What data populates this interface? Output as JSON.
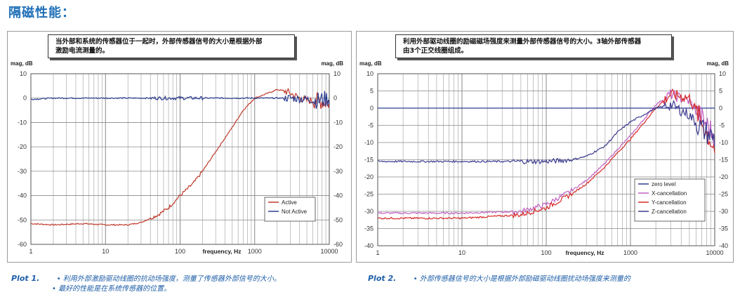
{
  "page_title": "隔磁性能：",
  "chart_data": [
    {
      "type": "line",
      "note": "当外部和系统的传感器位于一起时，外部传感器信号的大小是根据外部\n激励电流测量的。",
      "ylabel_left": "mag, dB",
      "ylabel_right": "mag, dB",
      "xlabel": "frequency, Hz",
      "x_scale": "log",
      "xlim": [
        1,
        10000
      ],
      "ylim": [
        -60,
        10
      ],
      "x_ticks": [
        "1",
        "10",
        "100",
        "1000",
        "10000"
      ],
      "y_ticks": [
        "10",
        "0",
        "-10",
        "-20",
        "-30",
        "-40",
        "-50",
        "-60"
      ],
      "legend_position": "bottom-right",
      "series": [
        {
          "name": "Active",
          "color": "#c0392b",
          "x": [
            1,
            2,
            5,
            10,
            20,
            30,
            50,
            70,
            100,
            150,
            200,
            300,
            500,
            700,
            1000,
            1500,
            2000,
            2500,
            3000,
            4000,
            5000,
            7000,
            10000
          ],
          "y": [
            -51.5,
            -52,
            -51.5,
            -52,
            -52,
            -51,
            -48,
            -45,
            -40,
            -35,
            -30,
            -22,
            -12,
            -5,
            0,
            2,
            3.5,
            3,
            2,
            0,
            -1,
            -1,
            -2
          ]
        },
        {
          "name": "Not Active",
          "color": "#2c3e91",
          "x": [
            1,
            2,
            10,
            100,
            1000,
            2000,
            3000,
            5000,
            7000,
            10000
          ],
          "y": [
            -0.5,
            0,
            0,
            0,
            0,
            0,
            0,
            -0.5,
            -1,
            0
          ]
        }
      ]
    },
    {
      "type": "line",
      "note": "利用外部驱动线圈的励磁磁场强度来测量外部传感器信号的大小。3轴外部传感器\n由3个正交线圈组成。",
      "ylabel_left": "mag, dB",
      "ylabel_right": "mag, dB",
      "xlabel": "frequency, Hz",
      "x_scale": "log",
      "xlim": [
        1,
        10000
      ],
      "ylim": [
        -40,
        10
      ],
      "x_ticks": [
        "1",
        "10",
        "100",
        "1000",
        "10000"
      ],
      "y_ticks": [
        "10",
        "5",
        "0",
        "-5",
        "-10",
        "-15",
        "-20",
        "-25",
        "-30",
        "-35",
        "-40"
      ],
      "legend_position": "bottom-right",
      "series": [
        {
          "name": "zero level",
          "color": "#2c3e91",
          "x": [
            1,
            10000
          ],
          "y": [
            0,
            0
          ]
        },
        {
          "name": "X-cancellation",
          "color": "#c060c0",
          "x": [
            1,
            10,
            50,
            100,
            200,
            300,
            500,
            700,
            1000,
            2000,
            3000,
            5000,
            7000,
            10000
          ],
          "y": [
            -30.5,
            -30.5,
            -30,
            -28,
            -24,
            -21,
            -16,
            -12,
            -8,
            1,
            4,
            2,
            -3,
            -8
          ]
        },
        {
          "name": "Y-cancellation",
          "color": "#d62828",
          "x": [
            1,
            10,
            50,
            70,
            100,
            200,
            300,
            500,
            700,
            1000,
            2000,
            3000,
            5000,
            7000,
            10000
          ],
          "y": [
            -32,
            -32,
            -31,
            -30,
            -29,
            -25,
            -22,
            -17,
            -13,
            -9,
            0,
            4,
            3,
            -4,
            -12
          ]
        },
        {
          "name": "Z-cancellation",
          "color": "#3a3a8f",
          "x": [
            1,
            10,
            100,
            200,
            300,
            500,
            700,
            1000,
            2000,
            3000,
            5000,
            7000,
            10000
          ],
          "y": [
            -15.5,
            -15.5,
            -15.5,
            -15,
            -14,
            -11,
            -7,
            -4,
            0,
            1,
            -2,
            -6,
            -9
          ]
        }
      ]
    }
  ],
  "captions": [
    {
      "label": "Plot 1.",
      "bullets": [
        "利用外部激励驱动线圈的抗动场强度，测量了传感器外部信号的大小。",
        "最好的性能是在系统传感器的位置。"
      ]
    },
    {
      "label": "Plot 2.",
      "bullets": [
        "外部传感器信号的大小是根据外部励磁驱动线圈扰动场强度来测量的"
      ]
    }
  ]
}
